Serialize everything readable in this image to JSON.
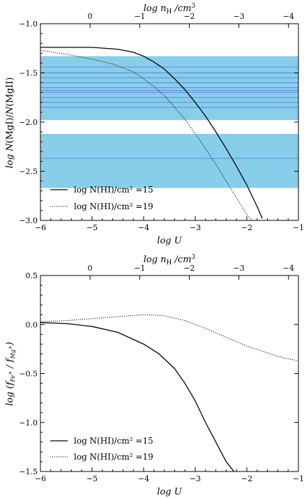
{
  "chart_data": [
    {
      "type": "line",
      "xlabel": "log U",
      "x2label": "log n_H /cm^3",
      "ylabel": "log N(MgI)/N(MgII)",
      "xlim": [
        -6,
        -1
      ],
      "ylim": [
        -3.0,
        -1.0
      ],
      "x2lim": [
        1.0,
        -4.2
      ],
      "xticks": [
        -6,
        -5,
        -4,
        -3,
        -2,
        -1
      ],
      "x2ticks": [
        0,
        -1,
        -2,
        -3,
        -4
      ],
      "yticks": [
        -3.0,
        -2.5,
        -2.0,
        -1.5,
        -1.0
      ],
      "bands": [
        {
          "y0": -2.67,
          "y1": -2.12,
          "color": "#87ceeb"
        },
        {
          "y0": -1.98,
          "y1": -1.33,
          "color": "#87ceeb"
        }
      ],
      "band_lines": [
        -1.44,
        -1.5,
        -1.55,
        -1.6,
        -1.65,
        -1.68,
        -1.7,
        -1.75,
        -1.8,
        -1.85,
        -2.37
      ],
      "series": [
        {
          "name": "log N(HI)/cm^2 =15",
          "style": "solid",
          "x": [
            -6,
            -5.5,
            -5,
            -4.5,
            -4.2,
            -4,
            -3.8,
            -3.6,
            -3.4,
            -3.2,
            -3.0,
            -2.8,
            -2.6,
            -2.4,
            -2.2,
            -2.0,
            -1.8,
            -1.7
          ],
          "y": [
            -1.24,
            -1.24,
            -1.24,
            -1.26,
            -1.29,
            -1.33,
            -1.39,
            -1.46,
            -1.56,
            -1.67,
            -1.8,
            -1.94,
            -2.1,
            -2.27,
            -2.45,
            -2.64,
            -2.86,
            -2.98
          ]
        },
        {
          "name": "log N(HI)/cm^2 =19",
          "style": "dotted",
          "x": [
            -6,
            -5.5,
            -5,
            -4.6,
            -4.2,
            -4.0,
            -3.8,
            -3.6,
            -3.4,
            -3.2,
            -3.0,
            -2.8,
            -2.6,
            -2.4,
            -2.2,
            -2.0,
            -1.9
          ],
          "y": [
            -1.27,
            -1.31,
            -1.36,
            -1.41,
            -1.49,
            -1.56,
            -1.64,
            -1.73,
            -1.85,
            -1.97,
            -2.12,
            -2.27,
            -2.43,
            -2.6,
            -2.77,
            -2.94,
            -3.0
          ]
        }
      ],
      "legend": "lower-left"
    },
    {
      "type": "line",
      "xlabel": "log U",
      "x2label": "log n_H /cm^3",
      "ylabel": "log (f_Fe+ / f_Mg+)",
      "xlim": [
        -6,
        -1
      ],
      "ylim": [
        -1.5,
        0.5
      ],
      "x2lim": [
        1.0,
        -4.2
      ],
      "xticks": [
        -6,
        -5,
        -4,
        -3,
        -2,
        -1
      ],
      "x2ticks": [
        0,
        -1,
        -2,
        -3,
        -4
      ],
      "yticks": [
        -1.5,
        -1.0,
        -0.5,
        0.0,
        0.5
      ],
      "series": [
        {
          "name": "log N(HI)/cm^2 =15",
          "style": "solid",
          "x": [
            -6,
            -5.5,
            -5,
            -4.5,
            -4.0,
            -3.7,
            -3.4,
            -3.2,
            -3.0,
            -2.8,
            -2.6,
            -2.4,
            -2.25
          ],
          "y": [
            0.02,
            0.01,
            -0.02,
            -0.08,
            -0.2,
            -0.3,
            -0.45,
            -0.6,
            -0.78,
            -1.0,
            -1.2,
            -1.4,
            -1.5
          ]
        },
        {
          "name": "log N(HI)/cm^2 =19",
          "style": "dotted",
          "x": [
            -6,
            -5.5,
            -5,
            -4.5,
            -4.0,
            -3.6,
            -3.2,
            -2.8,
            -2.4,
            -2.0,
            -1.6,
            -1.3,
            -1.0
          ],
          "y": [
            0.03,
            0.04,
            0.06,
            0.08,
            0.1,
            0.09,
            0.04,
            -0.04,
            -0.13,
            -0.22,
            -0.29,
            -0.34,
            -0.37
          ]
        }
      ],
      "legend": "lower-left"
    }
  ],
  "text": {
    "legend1": "log N(HI)/cm² =15",
    "legend2": "log N(HI)/cm² =19",
    "xlabel": "log U"
  }
}
